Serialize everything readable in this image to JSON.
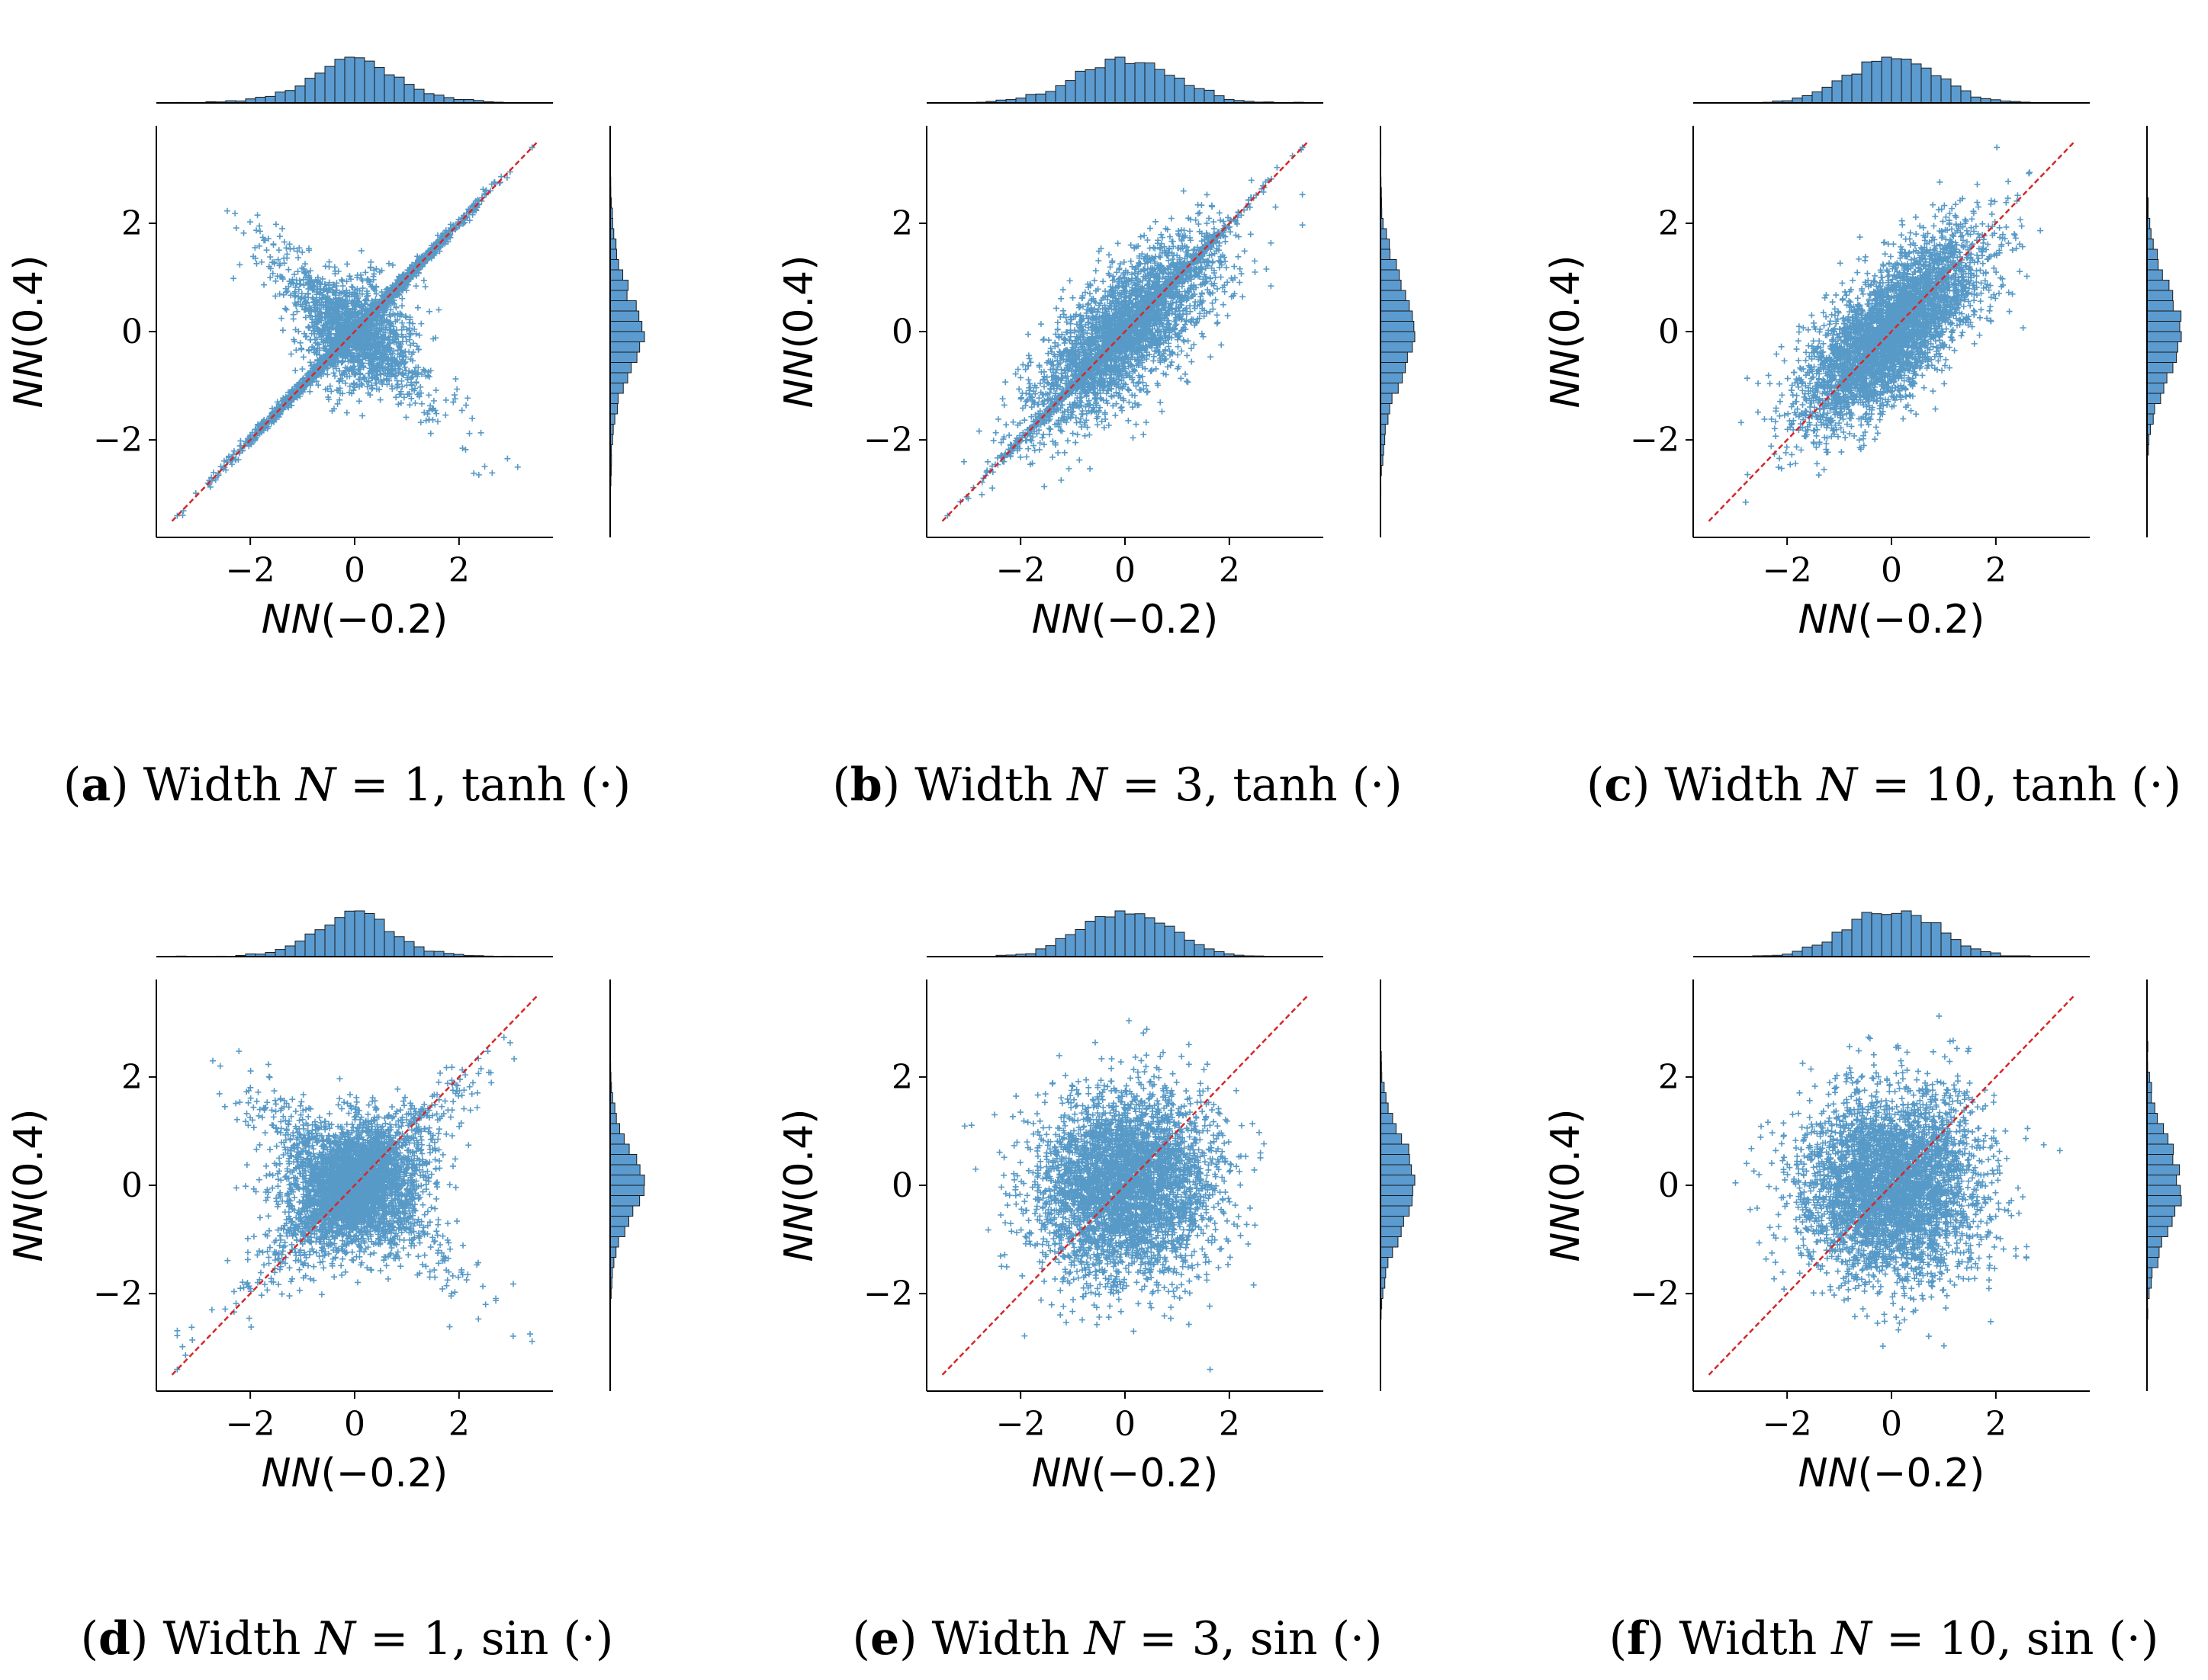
{
  "figure": {
    "marker_color": "#1f77b4",
    "hist_fill": "#5b9bd0",
    "diag_color": "#d62728"
  },
  "chart_data": [
    {
      "type": "scatter",
      "xlabel": "NN(−0.2)",
      "ylabel": "NN(0.4)",
      "xlabel_main": "NN",
      "xlabel_arg": "(−0.2)",
      "ylabel_main": "NN",
      "ylabel_arg": "(0.4)",
      "xlim": [
        -3.8,
        3.8
      ],
      "ylim": [
        -3.8,
        3.8
      ],
      "xticks": [
        -2,
        0,
        2
      ],
      "yticks": [
        -2,
        0,
        2
      ],
      "tick_labels": [
        "−2",
        "0",
        "2"
      ],
      "identity_line": [
        [
          -3.5,
          -3.5
        ],
        [
          3.5,
          3.5
        ]
      ],
      "pattern": "cross",
      "correlation": 0.8,
      "n_points": 4000,
      "marginals": true,
      "caption_letter": "a",
      "caption_text": "Width",
      "caption_N": "N",
      "caption_value": "= 1,",
      "caption_fn": "tanh (·)"
    },
    {
      "type": "scatter",
      "xlabel": "NN(−0.2)",
      "ylabel": "NN(0.4)",
      "xlabel_main": "NN",
      "xlabel_arg": "(−0.2)",
      "ylabel_main": "NN",
      "ylabel_arg": "(0.4)",
      "xlim": [
        -3.8,
        3.8
      ],
      "ylim": [
        -3.8,
        3.8
      ],
      "xticks": [
        -2,
        0,
        2
      ],
      "yticks": [
        -2,
        0,
        2
      ],
      "tick_labels": [
        "−2",
        "0",
        "2"
      ],
      "identity_line": [
        [
          -3.5,
          -3.5
        ],
        [
          3.5,
          3.5
        ]
      ],
      "pattern": "mixed",
      "correlation": 0.75,
      "n_points": 4000,
      "marginals": true,
      "caption_letter": "b",
      "caption_text": "Width",
      "caption_N": "N",
      "caption_value": "= 3,",
      "caption_fn": "tanh (·)"
    },
    {
      "type": "scatter",
      "xlabel": "NN(−0.2)",
      "ylabel": "NN(0.4)",
      "xlabel_main": "NN",
      "xlabel_arg": "(−0.2)",
      "ylabel_main": "NN",
      "ylabel_arg": "(0.4)",
      "xlim": [
        -3.8,
        3.8
      ],
      "ylim": [
        -3.8,
        3.8
      ],
      "xticks": [
        -2,
        0,
        2
      ],
      "yticks": [
        -2,
        0,
        2
      ],
      "tick_labels": [
        "−2",
        "0",
        "2"
      ],
      "identity_line": [
        [
          -3.5,
          -3.5
        ],
        [
          3.5,
          3.5
        ]
      ],
      "pattern": "gaussian",
      "correlation": 0.7,
      "n_points": 4000,
      "marginals": true,
      "caption_letter": "c",
      "caption_text": "Width",
      "caption_N": "N",
      "caption_value": "= 10,",
      "caption_fn": "tanh (·)"
    },
    {
      "type": "scatter",
      "xlabel": "NN(−0.2)",
      "ylabel": "NN(0.4)",
      "xlabel_main": "NN",
      "xlabel_arg": "(−0.2)",
      "ylabel_main": "NN",
      "ylabel_arg": "(0.4)",
      "xlim": [
        -3.8,
        3.8
      ],
      "ylim": [
        -3.8,
        3.8
      ],
      "xticks": [
        -2,
        0,
        2
      ],
      "yticks": [
        -2,
        0,
        2
      ],
      "tick_labels": [
        "−2",
        "0",
        "2"
      ],
      "identity_line": [
        [
          -3.5,
          -3.5
        ],
        [
          3.5,
          3.5
        ]
      ],
      "pattern": "sin-cross",
      "correlation": 0.2,
      "n_points": 4000,
      "marginals": true,
      "caption_letter": "d",
      "caption_text": "Width",
      "caption_N": "N",
      "caption_value": "= 1,",
      "caption_fn": "sin (·)"
    },
    {
      "type": "scatter",
      "xlabel": "NN(−0.2)",
      "ylabel": "NN(0.4)",
      "xlabel_main": "NN",
      "xlabel_arg": "(−0.2)",
      "ylabel_main": "NN",
      "ylabel_arg": "(0.4)",
      "xlim": [
        -3.8,
        3.8
      ],
      "ylim": [
        -3.8,
        3.8
      ],
      "xticks": [
        -2,
        0,
        2
      ],
      "yticks": [
        -2,
        0,
        2
      ],
      "tick_labels": [
        "−2",
        "0",
        "2"
      ],
      "identity_line": [
        [
          -3.5,
          -3.5
        ],
        [
          3.5,
          3.5
        ]
      ],
      "pattern": "gaussian",
      "correlation": 0.1,
      "n_points": 4000,
      "marginals": true,
      "caption_letter": "e",
      "caption_text": "Width",
      "caption_N": "N",
      "caption_value": "= 3,",
      "caption_fn": "sin (·)"
    },
    {
      "type": "scatter",
      "xlabel": "NN(−0.2)",
      "ylabel": "NN(0.4)",
      "xlabel_main": "NN",
      "xlabel_arg": "(−0.2)",
      "ylabel_main": "NN",
      "ylabel_arg": "(0.4)",
      "xlim": [
        -3.8,
        3.8
      ],
      "ylim": [
        -3.8,
        3.8
      ],
      "xticks": [
        -2,
        0,
        2
      ],
      "yticks": [
        -2,
        0,
        2
      ],
      "tick_labels": [
        "−2",
        "0",
        "2"
      ],
      "identity_line": [
        [
          -3.5,
          -3.5
        ],
        [
          3.5,
          3.5
        ]
      ],
      "pattern": "gaussian",
      "correlation": 0.05,
      "n_points": 4000,
      "marginals": true,
      "caption_letter": "f",
      "caption_text": "Width",
      "caption_N": "N",
      "caption_value": "= 10,",
      "caption_fn": "sin (·)"
    }
  ]
}
